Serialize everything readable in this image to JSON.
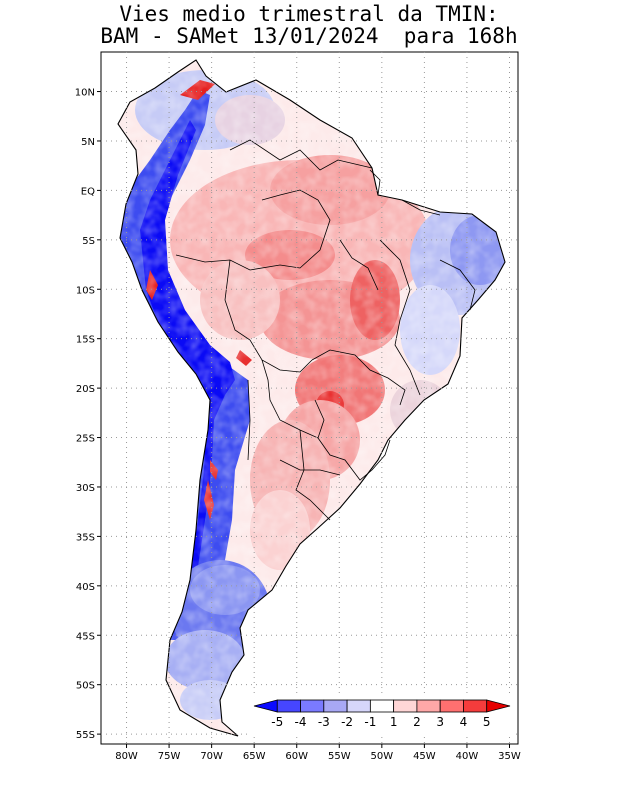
{
  "title": {
    "line1": "Vies medio trimestral da TMIN:",
    "line2": "BAM - SAMet 13/01/2024  para 168h"
  },
  "map": {
    "lon_range": [
      -83,
      -34
    ],
    "lat_range": [
      -56,
      14
    ],
    "grid": true,
    "lon_ticks": [
      {
        "value": -80,
        "label": "80W"
      },
      {
        "value": -75,
        "label": "75W"
      },
      {
        "value": -70,
        "label": "70W"
      },
      {
        "value": -65,
        "label": "65W"
      },
      {
        "value": -60,
        "label": "60W"
      },
      {
        "value": -55,
        "label": "55W"
      },
      {
        "value": -50,
        "label": "50W"
      },
      {
        "value": -45,
        "label": "45W"
      },
      {
        "value": -40,
        "label": "40W"
      },
      {
        "value": -35,
        "label": "35W"
      }
    ],
    "lat_ticks": [
      {
        "value": 10,
        "label": "10N"
      },
      {
        "value": 5,
        "label": "5N"
      },
      {
        "value": 0,
        "label": "EQ"
      },
      {
        "value": -5,
        "label": "5S"
      },
      {
        "value": -10,
        "label": "10S"
      },
      {
        "value": -15,
        "label": "15S"
      },
      {
        "value": -20,
        "label": "20S"
      },
      {
        "value": -25,
        "label": "25S"
      },
      {
        "value": -30,
        "label": "30S"
      },
      {
        "value": -35,
        "label": "35S"
      },
      {
        "value": -40,
        "label": "40S"
      },
      {
        "value": -45,
        "label": "45S"
      },
      {
        "value": -50,
        "label": "50S"
      },
      {
        "value": -55,
        "label": "55S"
      }
    ],
    "colorbar": {
      "position": "bottom-right",
      "labels": [
        "-5",
        "-4",
        "-3",
        "-2",
        "-1",
        "1",
        "2",
        "3",
        "4",
        "5"
      ],
      "colors": [
        "#0a0aff",
        "#4646ff",
        "#7a7aff",
        "#a8a8f5",
        "#d6d6fa",
        "#ffffff",
        "#ffd6d6",
        "#ffa8a8",
        "#ff7070",
        "#f53c3c",
        "#e60000"
      ]
    },
    "land_color": "#fdeaea",
    "ocean_color": "#ffffff"
  }
}
